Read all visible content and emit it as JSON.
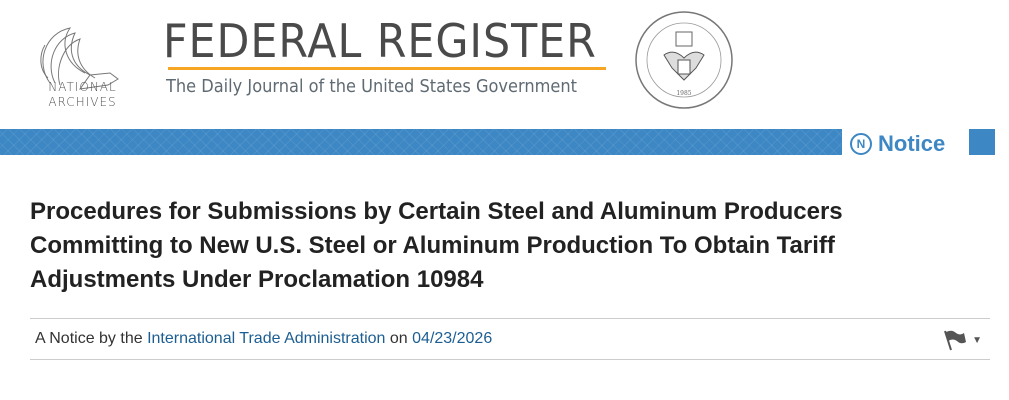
{
  "header": {
    "archives_label_line1": "NATIONAL",
    "archives_label_line2": "ARCHIVES",
    "title": "FEDERAL REGISTER",
    "subtitle": "The Daily Journal of the United States Government",
    "seal_text": "NATIONAL ARCHIVES AND RECORDS ADMINISTRATION 1985"
  },
  "banner": {
    "doc_type": "Notice",
    "doc_type_icon_letter": "N",
    "accent": "#3d87c4"
  },
  "document": {
    "title": "Procedures for Submissions by Certain Steel and Aluminum Producers Committing to New U.S. Steel or Aluminum Production To Obtain Tariff Adjustments Under Proclamation 10984",
    "meta_prefix": "A Notice by the",
    "agency": "International Trade Administration",
    "meta_on": "on",
    "date": "04/23/2026"
  }
}
